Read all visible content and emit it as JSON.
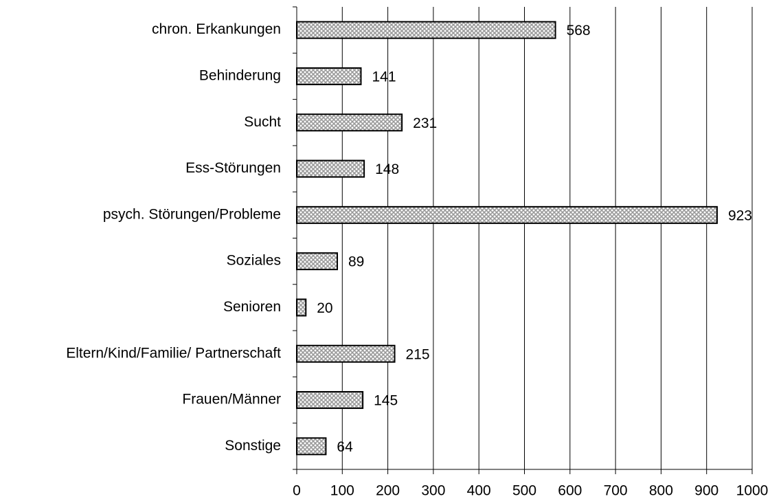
{
  "chart_data": {
    "type": "bar",
    "orientation": "horizontal",
    "categories": [
      "chron. Erkankungen",
      "Behinderung",
      "Sucht",
      "Ess-Störungen",
      "psych. Störungen/Probleme",
      "Soziales",
      "Senioren",
      "Eltern/Kind/Familie/ Partnerschaft",
      "Frauen/Männer",
      "Sonstige"
    ],
    "values": [
      568,
      141,
      231,
      148,
      923,
      89,
      20,
      215,
      145,
      64
    ],
    "color": "#9a9a9a",
    "xlim": [
      0,
      1000
    ],
    "xticks": [
      0,
      100,
      200,
      300,
      400,
      500,
      600,
      700,
      800,
      900,
      1000
    ],
    "grid": true
  }
}
